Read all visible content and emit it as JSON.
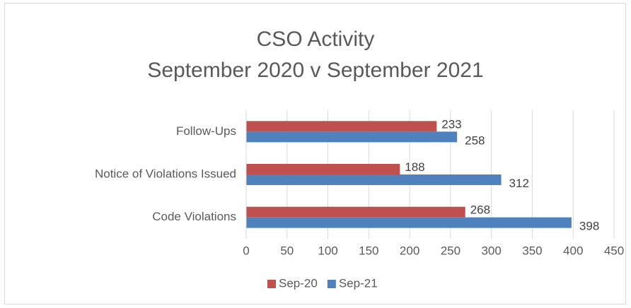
{
  "chart_data": {
    "type": "bar",
    "orientation": "horizontal",
    "title": "CSO Activity",
    "subtitle": "September 2020 v September 2021",
    "categories": [
      "Follow-Ups",
      "Notice of Violations Issued",
      "Code Violations"
    ],
    "series": [
      {
        "name": "Sep-20",
        "color": "#c0504d",
        "values": [
          233,
          188,
          268
        ]
      },
      {
        "name": "Sep-21",
        "color": "#4f81bd",
        "values": [
          258,
          312,
          398
        ]
      }
    ],
    "xlim": [
      0,
      450
    ],
    "xticks": [
      0,
      50,
      100,
      150,
      200,
      250,
      300,
      350,
      400,
      450
    ],
    "grid": true,
    "legend": "bottom"
  }
}
